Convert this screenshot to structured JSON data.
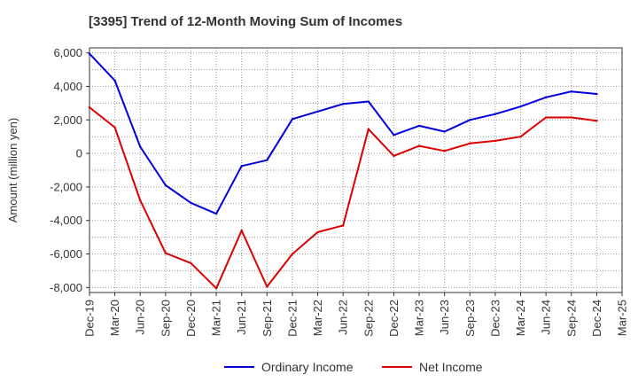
{
  "chart_data": {
    "type": "line",
    "title": "[3395]  Trend of 12-Month Moving Sum of Incomes",
    "xlabel": "",
    "ylabel": "Amount (million yen)",
    "ylim": [
      -8300,
      6300
    ],
    "yticks": [
      6000,
      4000,
      2000,
      0,
      -2000,
      -4000,
      -6000,
      -8000
    ],
    "ytick_labels": [
      "6,000",
      "4,000",
      "2,000",
      "0",
      "-2,000",
      "-4,000",
      "-6,000",
      "-8,000"
    ],
    "categories": [
      "Dec-19",
      "Mar-20",
      "Jun-20",
      "Sep-20",
      "Dec-20",
      "Mar-21",
      "Jun-21",
      "Sep-21",
      "Dec-21",
      "Mar-22",
      "Jun-22",
      "Sep-22",
      "Dec-22",
      "Mar-23",
      "Jun-23",
      "Sep-23",
      "Dec-23",
      "Mar-24",
      "Jun-24",
      "Sep-24",
      "Dec-24",
      "Mar-25"
    ],
    "grid": true,
    "legend_position": "bottom",
    "series": [
      {
        "name": "Ordinary Income",
        "color": "#0000dd",
        "values": [
          5950,
          4350,
          400,
          -1900,
          -2950,
          -3600,
          -750,
          -400,
          2050,
          2500,
          2950,
          3100,
          1100,
          1650,
          1300,
          2000,
          2350,
          2800,
          3350,
          3700,
          3550,
          null
        ]
      },
      {
        "name": "Net Income",
        "color": "#dd0000",
        "values": [
          2750,
          1550,
          -2800,
          -5950,
          -6550,
          -8050,
          -4600,
          -7950,
          -6000,
          -4700,
          -4300,
          1450,
          -150,
          450,
          150,
          600,
          750,
          1000,
          2150,
          2150,
          1950,
          null
        ]
      }
    ]
  }
}
